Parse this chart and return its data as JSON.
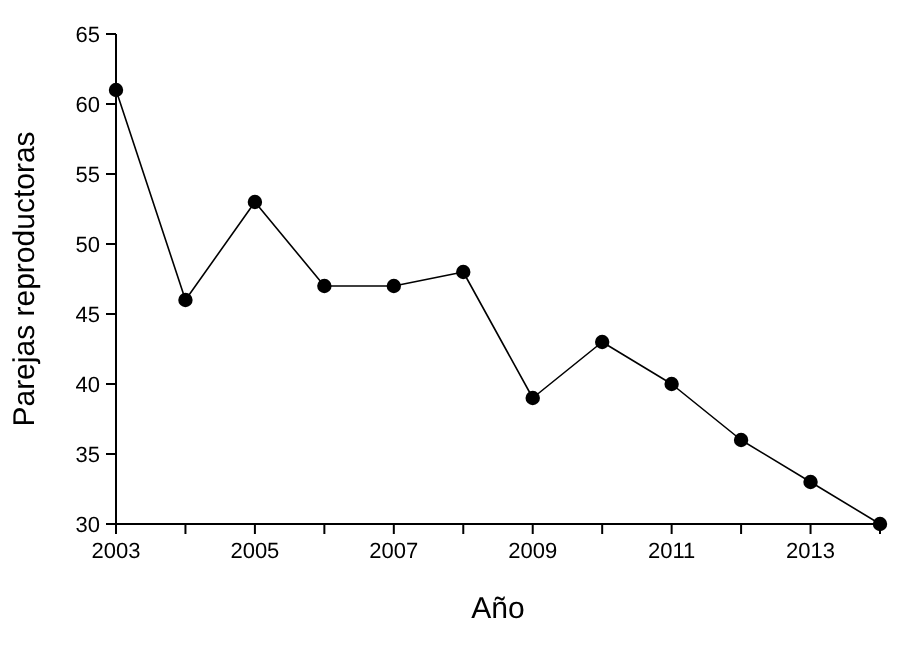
{
  "chart_data": {
    "type": "line",
    "xlabel": "Año",
    "ylabel": "Parejas reproductoras",
    "x": [
      2003,
      2004,
      2005,
      2006,
      2007,
      2008,
      2009,
      2010,
      2011,
      2012,
      2013,
      2014
    ],
    "series": [
      {
        "color": "#000000",
        "values": [
          61,
          46,
          53,
          47,
          47,
          48,
          39,
          43,
          40,
          36,
          33,
          30
        ]
      }
    ],
    "xlim": [
      2003,
      2014
    ],
    "xticks": [
      2003,
      {
        "value": 2004,
        "label": null
      },
      2005,
      {
        "value": 2006,
        "label": null
      },
      2007,
      {
        "value": 2008,
        "label": null
      },
      2009,
      {
        "value": 2010,
        "label": null
      },
      2011,
      {
        "value": 2012,
        "label": null
      },
      2013,
      {
        "value": 2014,
        "label": null
      }
    ],
    "ylim": [
      30,
      65
    ],
    "yticks": [
      30,
      35,
      40,
      45,
      50,
      55,
      60,
      65
    ],
    "marker": "circle",
    "line_style": "solid"
  }
}
